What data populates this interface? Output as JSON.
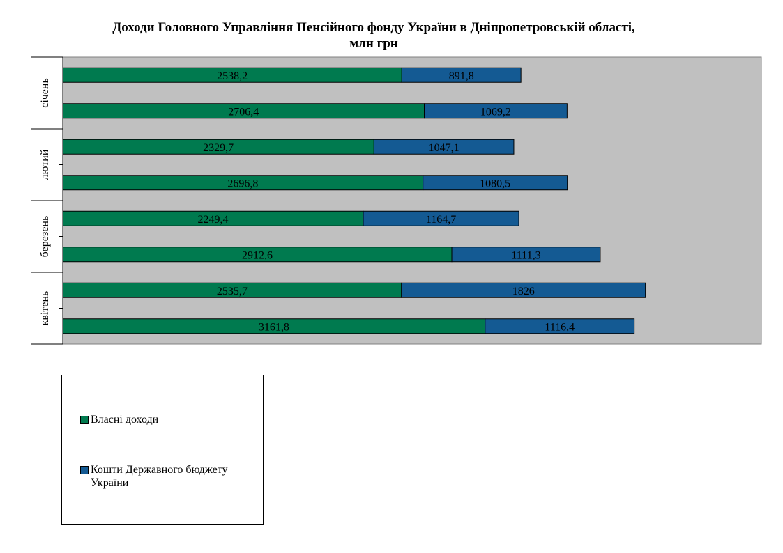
{
  "title": {
    "line1": "Доходи Головного Управління Пенсійного фонду України в Дніпропетровській області,",
    "line2": "млн грн"
  },
  "colors": {
    "plot_background": "#c0c0c0",
    "own": "#007a4f",
    "state": "#145a93"
  },
  "chart_data": {
    "type": "bar",
    "orientation": "horizontal",
    "stacked": true,
    "groups": [
      "січень",
      "лютий",
      "березень",
      "квітень"
    ],
    "bars_per_group": 2,
    "series": [
      {
        "name": "Власні доходи",
        "color": "#007a4f",
        "values": [
          2538.2,
          2706.4,
          2329.7,
          2696.8,
          2249.4,
          2912.6,
          2535.7,
          3161.8
        ],
        "labels": [
          "2538,2",
          "2706,4",
          "2329,7",
          "2696,8",
          "2249,4",
          "2912,6",
          "2535,7",
          "3161,8"
        ]
      },
      {
        "name": "Кошти Державного бюджету України",
        "color": "#145a93",
        "values": [
          891.8,
          1069.2,
          1047.1,
          1080.5,
          1164.7,
          1111.3,
          1826,
          1116.4
        ],
        "labels": [
          "891,8",
          "1069,2",
          "1047,1",
          "1080,5",
          "1164,7",
          "1111,3",
          "1826",
          "1116,4"
        ]
      }
    ],
    "xlim": [
      0,
      5230
    ],
    "grid": false,
    "legend_position": "bottom-left"
  }
}
